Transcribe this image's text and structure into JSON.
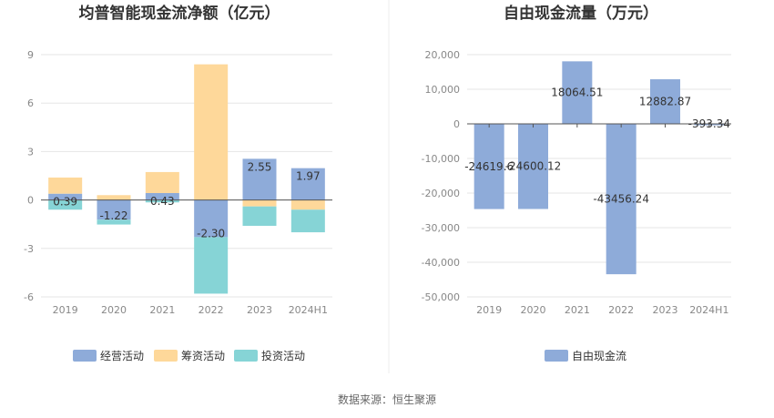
{
  "colors": {
    "operating": "#8eabd9",
    "financing": "#fed89a",
    "investing": "#86d4d6",
    "fcf": "#8eabd9",
    "grid": "#e6e6e6",
    "axis": "#555555"
  },
  "source_text": "数据来源：恒生聚源",
  "chart_data": [
    {
      "type": "bar",
      "stacked": true,
      "title": "均普智能现金流净额（亿元）",
      "categories": [
        "2019",
        "2020",
        "2021",
        "2022",
        "2023",
        "2024H1"
      ],
      "yticks": [
        9,
        6,
        3,
        0,
        -3,
        -6
      ],
      "ylim": [
        -6,
        9
      ],
      "grid": true,
      "legend_position": "bottom",
      "series": [
        {
          "name": "经营活动",
          "key": "operating",
          "values": [
            0.39,
            -1.22,
            0.43,
            -2.3,
            2.55,
            1.97
          ],
          "labels": [
            "0.39",
            "-1.22",
            "0.43",
            "-2.30",
            "2.55",
            "1.97"
          ]
        },
        {
          "name": "筹资活动",
          "key": "financing",
          "values": [
            1.0,
            0.3,
            1.3,
            8.4,
            -0.4,
            -0.6
          ]
        },
        {
          "name": "投资活动",
          "key": "investing",
          "values": [
            -0.6,
            -0.3,
            -0.15,
            -3.5,
            -1.2,
            -1.4
          ]
        }
      ]
    },
    {
      "type": "bar",
      "title": "自由现金流量（万元）",
      "categories": [
        "2019",
        "2020",
        "2021",
        "2022",
        "2023",
        "2024H1"
      ],
      "yticks": [
        "20,000",
        "10,000",
        "0",
        "-10,000",
        "-20,000",
        "-30,000",
        "-40,000",
        "-50,000"
      ],
      "ylim": [
        -50000,
        20000
      ],
      "grid": true,
      "legend_position": "bottom",
      "series": [
        {
          "name": "自由现金流",
          "key": "fcf",
          "values": [
            -24619.6,
            -24600.12,
            18064.51,
            -43456.24,
            12882.87,
            -393.34
          ],
          "labels": [
            "-24619.6",
            "-24600.12",
            "18064.51",
            "-43456.24",
            "12882.87",
            "-393.34"
          ]
        }
      ]
    }
  ]
}
